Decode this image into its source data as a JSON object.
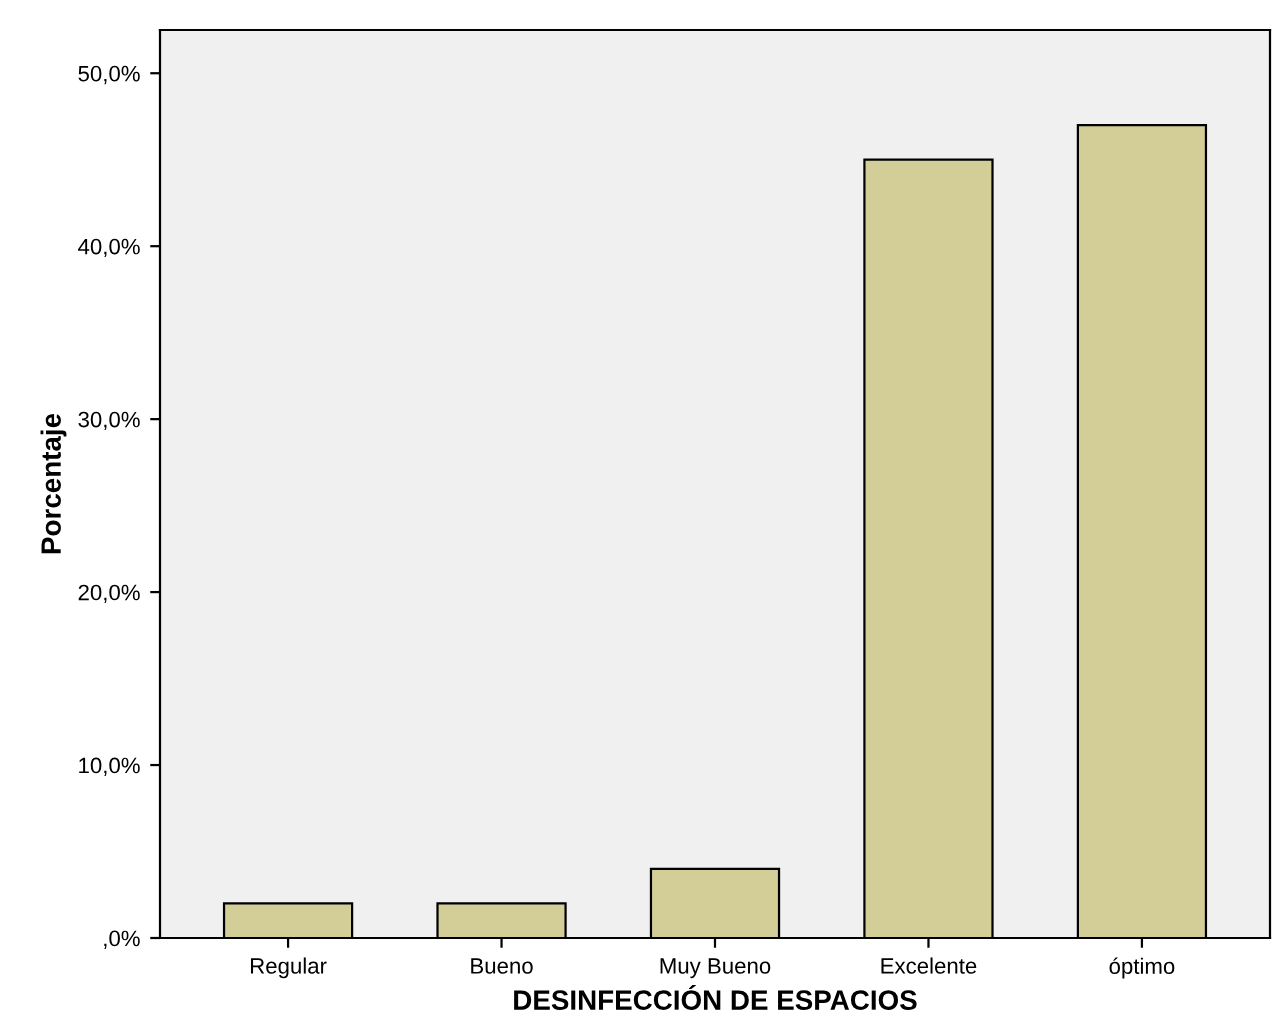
{
  "chart_data": {
    "type": "bar",
    "xlabel": "DESINFECCIÓN DE ESPACIOS",
    "ylabel": "Porcentaje",
    "categories": [
      "Regular",
      "Bueno",
      "Muy Bueno",
      "Excelente",
      "óptimo"
    ],
    "values": [
      2,
      2,
      4,
      45,
      47
    ],
    "color": "#d3ce97",
    "ylim": [
      0,
      52.5
    ],
    "yticks": [
      {
        "value": 0,
        "label": ",0%"
      },
      {
        "value": 10,
        "label": "10,0%"
      },
      {
        "value": 20,
        "label": "20,0%"
      },
      {
        "value": 30,
        "label": "30,0%"
      },
      {
        "value": 40,
        "label": "40,0%"
      },
      {
        "value": 50,
        "label": "50,0%"
      }
    ],
    "grid": false
  }
}
